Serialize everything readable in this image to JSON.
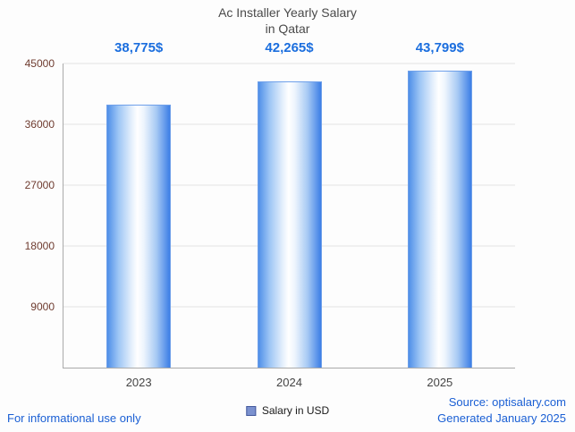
{
  "title": {
    "line1": "Ac Installer Yearly Salary",
    "line2": "in Qatar"
  },
  "chart_data": {
    "type": "bar",
    "title": "Ac Installer Yearly Salary in Qatar",
    "categories": [
      "2023",
      "2024",
      "2025"
    ],
    "values": [
      38775,
      42265,
      43799
    ],
    "value_labels": [
      "38,775$",
      "42,265$",
      "43,799$"
    ],
    "xlabel": "",
    "ylabel": "",
    "ylim": [
      0,
      45000
    ],
    "yticks": [
      9000,
      18000,
      27000,
      36000,
      45000
    ],
    "grid": true,
    "legend": "Salary in USD",
    "legend_position": "bottom-center"
  },
  "footer": {
    "left_note": "For informational use only",
    "source": "Source: optisalary.com",
    "generated": "Generated January 2025"
  },
  "colors": {
    "value_label": "#1b6ede",
    "footer_text": "#1a5fd4",
    "bar_edge": "#6fa0ea",
    "bar_fill_dark": "#3c7ee6",
    "ytick_text": "#6e3b2f",
    "title_text": "#4a4a4a",
    "gridline": "#e4e4e4"
  }
}
